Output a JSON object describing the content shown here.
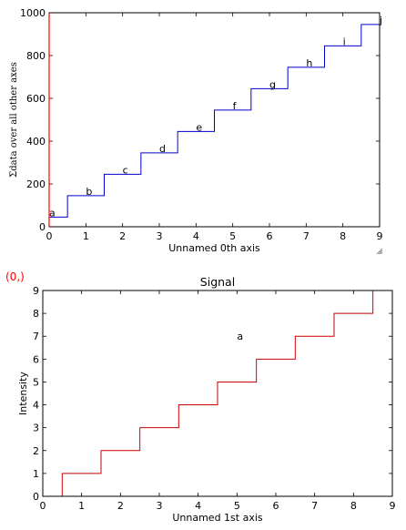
{
  "chart_data": [
    {
      "type": "line",
      "drawstyle": "steps-mid",
      "title": "",
      "xlabel": "Unnamed 0th axis",
      "ylabel": "Σdata over all other axes",
      "xlim": [
        0,
        9
      ],
      "ylim": [
        0,
        1000
      ],
      "xticks": [
        "0",
        "1",
        "2",
        "3",
        "4",
        "5",
        "6",
        "7",
        "8",
        "9"
      ],
      "yticks": [
        "0",
        "200",
        "400",
        "600",
        "800",
        "1000"
      ],
      "grid": false,
      "series": [
        {
          "color": "#0000cc",
          "x": [
            0,
            1,
            2,
            3,
            4,
            5,
            6,
            7,
            8,
            9
          ],
          "y": [
            45,
            145,
            245,
            345,
            445,
            545,
            645,
            745,
            845,
            945
          ]
        }
      ],
      "annotations": [
        {
          "text": "a",
          "x": 0,
          "y": 45
        },
        {
          "text": "b",
          "x": 1,
          "y": 145
        },
        {
          "text": "c",
          "x": 2,
          "y": 245
        },
        {
          "text": "d",
          "x": 3,
          "y": 345
        },
        {
          "text": "e",
          "x": 4,
          "y": 445
        },
        {
          "text": "f",
          "x": 5,
          "y": 545
        },
        {
          "text": "g",
          "x": 6,
          "y": 645
        },
        {
          "text": "h",
          "x": 7,
          "y": 745
        },
        {
          "text": "i",
          "x": 8,
          "y": 845
        },
        {
          "text": "j",
          "x": 9,
          "y": 945
        }
      ]
    },
    {
      "type": "line",
      "drawstyle": "steps-mid",
      "title": "Signal",
      "xlabel": "Unnamed 1st axis",
      "ylabel": "Intensity",
      "xlim": [
        0,
        9
      ],
      "ylim": [
        0,
        9
      ],
      "xticks": [
        "0",
        "1",
        "2",
        "3",
        "4",
        "5",
        "6",
        "7",
        "8",
        "9"
      ],
      "yticks": [
        "0",
        "1",
        "2",
        "3",
        "4",
        "5",
        "6",
        "7",
        "8",
        "9"
      ],
      "grid": false,
      "series": [
        {
          "color": "#cc0000",
          "x": [
            0,
            1,
            2,
            3,
            4,
            5,
            6,
            7,
            8,
            9
          ],
          "y": [
            0,
            1,
            2,
            3,
            4,
            5,
            6,
            7,
            8,
            9
          ]
        }
      ],
      "annotations": [
        {
          "text": "a",
          "x": 5,
          "y": 7
        }
      ]
    }
  ],
  "corner_label": "(0,)",
  "colors": {
    "axis_highlight": "#ff0000",
    "series_top": "#0000cc",
    "series_bottom": "#cc0000"
  }
}
